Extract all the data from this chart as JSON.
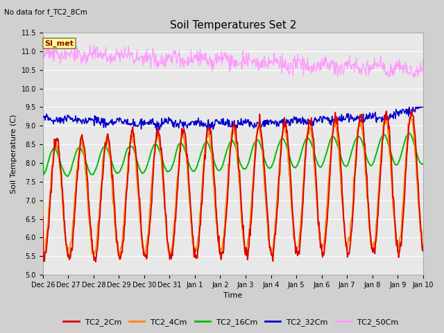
{
  "title": "Soil Temperatures Set 2",
  "top_left_note": "No data for f_TC2_8Cm",
  "xlabel": "Time",
  "ylabel": "Soil Temperature (C)",
  "ylim": [
    5.0,
    11.5
  ],
  "yticks": [
    5.0,
    5.5,
    6.0,
    6.5,
    7.0,
    7.5,
    8.0,
    8.5,
    9.0,
    9.5,
    10.0,
    10.5,
    11.0,
    11.5
  ],
  "fig_bg_color": "#d0d0d0",
  "plot_bg_color": "#e8e8e8",
  "grid_color": "#ffffff",
  "legend_label": "SI_met",
  "legend_bg": "#ffff99",
  "legend_border": "#aaaaaa",
  "series_colors": {
    "TC2_2Cm": "#dd0000",
    "TC2_4Cm": "#ff8800",
    "TC2_16Cm": "#00bb00",
    "TC2_32Cm": "#0000cc",
    "TC2_50Cm": "#ff99ff"
  },
  "num_points": 720,
  "title_fontsize": 11,
  "axis_fontsize": 8,
  "tick_fontsize": 7,
  "legend_fontsize": 8
}
